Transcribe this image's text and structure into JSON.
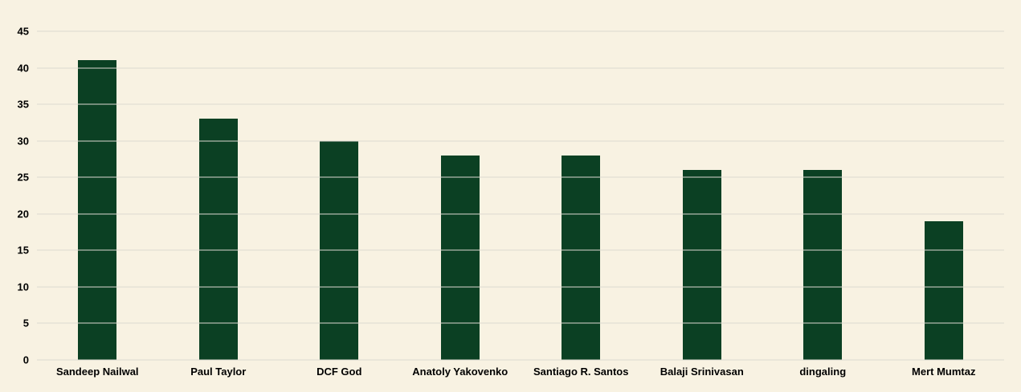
{
  "chart_data": {
    "type": "bar",
    "title": "",
    "xlabel": "",
    "ylabel": "",
    "categories": [
      "Sandeep Nailwal",
      "Paul Taylor",
      "DCF God",
      "Anatoly Yakovenko",
      "Santiago R. Santos",
      "Balaji Srinivasan",
      "dingaling",
      "Mert Mumtaz"
    ],
    "values": [
      41,
      33,
      30,
      28,
      28,
      26,
      26,
      19
    ],
    "ylim": [
      0,
      45
    ],
    "ytick_interval": 5,
    "ytick_labels": [
      "0",
      "5",
      "10",
      "15",
      "20",
      "25",
      "30",
      "35",
      "40",
      "45"
    ],
    "grid": true,
    "legend": false,
    "colors": {
      "background": "#f8f2e2",
      "bar": "#0b4023",
      "gridline": "#ddd9d0",
      "axis_text": "#000000"
    }
  }
}
